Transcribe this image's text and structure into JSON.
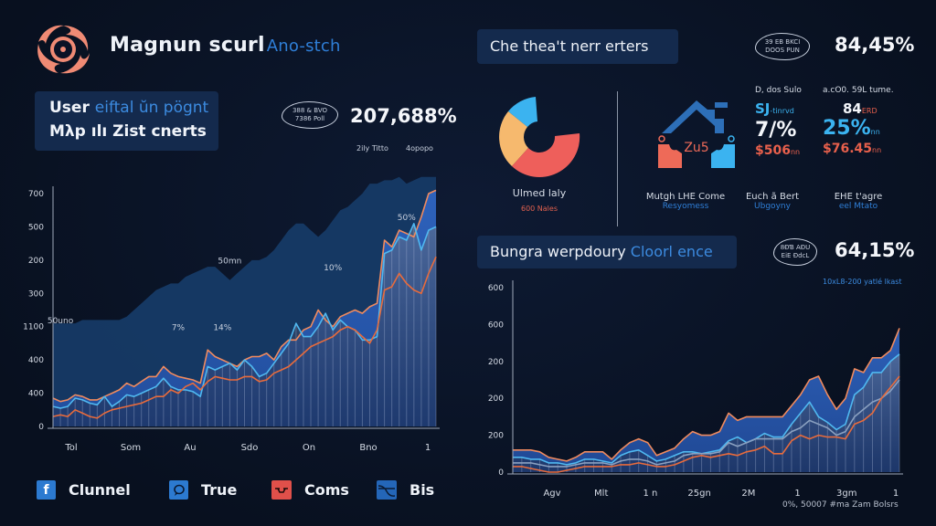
{
  "header": {
    "app_title": "Magnun scurl",
    "app_subtitle": "Ano-stch"
  },
  "left_panel": {
    "title_line1_main": "User",
    "title_line1_accent": "eiftal ŭn pögnt",
    "title_line2": "Mλp ılı Zist cnerts",
    "badge_text": [
      "388 & BVO",
      "7386 Poll"
    ],
    "kpi_value": "207,688%",
    "legend_top": [
      "2ily Titto",
      "4opopo"
    ]
  },
  "right_top": {
    "title": "Che thea't nerr erters",
    "badge_text": [
      "39 EB BKCI",
      "DOOS PUN"
    ],
    "kpi_value": "84,45%",
    "donut": {
      "label": "Ulmed laly",
      "sublabel": "600 Nales",
      "colors": {
        "blue": "#3bb3f0",
        "peach": "#f6b96e",
        "red": "#ee5f5b"
      }
    },
    "house_icon_text": "Zu5",
    "stats": [
      {
        "head": "D, dos Sulo",
        "a_value": "SJ",
        "a_unit": "-tinrvd",
        "b_value": "7/%",
        "c_value": "$506",
        "c_unit": "nn"
      },
      {
        "head": "a.cO0. 59L tume.",
        "a_value": "84",
        "a_unit": "ERD",
        "b_value": "25%",
        "b_unit": "nn",
        "c_value": "$76.45",
        "c_unit": "nn"
      }
    ],
    "captions": [
      {
        "main": "Mutgh LHE Come",
        "sub": "Resyomess"
      },
      {
        "main": "Euch ã Bert",
        "sub": "Ubgoyny"
      },
      {
        "main": "EHE t'agre",
        "sub": "eel Mtato"
      }
    ]
  },
  "right_bottom": {
    "title_main": "Bungra werpdoury",
    "title_accent": "Cloorl ence",
    "badge_text": [
      "8ĐƁ AƉU",
      "EiE ĐdcL"
    ],
    "kpi_value": "64,15%",
    "kpi_sub": "10xL8-200 yatlé lkast",
    "footer_note": "0%, 50007 #ma Zam Bolsrs"
  },
  "legend": [
    {
      "icon": "facebook-icon",
      "label": "Clunnel",
      "color": "#2c7ad0"
    },
    {
      "icon": "chat-bubble-icon",
      "label": "True",
      "color": "#2c7ad0"
    },
    {
      "icon": "drone-icon",
      "label": "Coms",
      "color": "#e0504a"
    },
    {
      "icon": "wave-chart-icon",
      "label": "Bis",
      "color": "#2466b8"
    }
  ],
  "chart_data": [
    {
      "type": "area",
      "title": "",
      "xlabel": "",
      "ylabel": "",
      "y_tick_labels": [
        "0",
        "400",
        "400",
        "1100",
        "300",
        "200",
        "500",
        "700"
      ],
      "x_tick_labels": [
        "Tol",
        "Som",
        "Au",
        "Sdo",
        "On",
        "Bno",
        "1"
      ],
      "ylim": [
        0,
        7
      ],
      "annotations": [
        {
          "text": "50uno",
          "x": 1,
          "y": 3.1
        },
        {
          "text": "7%",
          "x": 17,
          "y": 2.9
        },
        {
          "text": "50mn",
          "x": 24,
          "y": 4.9
        },
        {
          "text": "14%",
          "x": 23,
          "y": 2.9
        },
        {
          "text": "10%",
          "x": 38,
          "y": 4.7
        },
        {
          "text": "50%",
          "x": 48,
          "y": 6.2
        }
      ],
      "series": [
        {
          "name": "Background area",
          "color": "#163a66",
          "values": [
            3.1,
            3.1,
            3.1,
            3.1,
            3.2,
            3.2,
            3.2,
            3.2,
            3.2,
            3.2,
            3.3,
            3.5,
            3.7,
            3.9,
            4.1,
            4.2,
            4.3,
            4.3,
            4.5,
            4.6,
            4.7,
            4.8,
            4.8,
            4.6,
            4.4,
            4.6,
            4.8,
            5.0,
            5.0,
            5.1,
            5.3,
            5.6,
            5.9,
            6.1,
            6.1,
            5.9,
            5.7,
            5.9,
            6.2,
            6.5,
            6.6,
            6.8,
            7.0,
            7.3,
            7.3,
            7.4,
            7.4,
            7.5,
            7.3,
            7.4,
            7.5,
            7.5,
            7.5
          ]
        },
        {
          "name": "Orange upper",
          "color": "#f08a5e",
          "values": [
            0.85,
            0.75,
            0.8,
            0.95,
            0.9,
            0.8,
            0.8,
            0.9,
            1.0,
            1.1,
            1.3,
            1.2,
            1.35,
            1.5,
            1.5,
            1.8,
            1.6,
            1.5,
            1.45,
            1.4,
            1.3,
            2.3,
            2.1,
            2.0,
            1.9,
            1.8,
            2.0,
            2.1,
            2.1,
            2.2,
            2.0,
            2.4,
            2.6,
            2.6,
            2.9,
            3.0,
            3.5,
            3.2,
            3.0,
            3.3,
            3.4,
            3.5,
            3.4,
            3.6,
            3.7,
            5.6,
            5.4,
            5.9,
            5.8,
            5.7,
            6.3,
            7.0,
            7.1
          ]
        },
        {
          "name": "Light blue",
          "color": "#4fb8f0",
          "values": [
            0.6,
            0.55,
            0.6,
            0.85,
            0.8,
            0.7,
            0.65,
            0.9,
            0.6,
            0.75,
            0.95,
            0.9,
            1.0,
            1.1,
            1.2,
            1.45,
            1.2,
            1.1,
            1.1,
            1.05,
            0.9,
            1.8,
            1.7,
            1.8,
            1.9,
            1.7,
            2.0,
            1.8,
            1.5,
            1.6,
            1.9,
            2.2,
            2.5,
            3.1,
            2.7,
            2.7,
            3.0,
            3.4,
            2.9,
            3.2,
            3.0,
            2.9,
            2.6,
            2.6,
            2.7,
            5.2,
            5.3,
            5.7,
            5.6,
            6.1,
            5.3,
            5.9,
            6.0
          ]
        },
        {
          "name": "Orange lower",
          "color": "#e86b3c",
          "values": [
            0.3,
            0.35,
            0.3,
            0.5,
            0.4,
            0.3,
            0.25,
            0.4,
            0.5,
            0.55,
            0.6,
            0.65,
            0.7,
            0.8,
            0.9,
            0.9,
            1.1,
            1.0,
            1.2,
            1.3,
            1.1,
            1.35,
            1.5,
            1.45,
            1.4,
            1.4,
            1.5,
            1.5,
            1.35,
            1.4,
            1.6,
            1.7,
            1.8,
            2.0,
            2.2,
            2.4,
            2.5,
            2.6,
            2.7,
            2.9,
            3.0,
            2.9,
            2.7,
            2.5,
            2.9,
            4.1,
            4.2,
            4.6,
            4.3,
            4.1,
            4.0,
            4.6,
            5.1
          ]
        }
      ]
    },
    {
      "type": "area",
      "title": "",
      "xlabel": "",
      "ylabel": "",
      "y_tick_labels": [
        "0",
        "200",
        "200",
        "200",
        "600",
        "600"
      ],
      "x_tick_labels": [
        "Agv",
        "Mlt",
        "1 n",
        "25gn",
        "2M",
        "1",
        "3gm",
        "1"
      ],
      "ylim": [
        0,
        5
      ],
      "series": [
        {
          "name": "Orange upper",
          "color": "#f08a5e",
          "values": [
            0.6,
            0.6,
            0.6,
            0.55,
            0.4,
            0.35,
            0.3,
            0.4,
            0.55,
            0.55,
            0.55,
            0.35,
            0.6,
            0.8,
            0.9,
            0.8,
            0.45,
            0.55,
            0.65,
            0.9,
            1.1,
            1.0,
            1.0,
            1.1,
            1.6,
            1.4,
            1.5,
            1.5,
            1.5,
            1.5,
            1.5,
            1.8,
            2.1,
            2.5,
            2.6,
            2.1,
            1.7,
            2.0,
            2.8,
            2.7,
            3.1,
            3.1,
            3.3,
            3.9
          ]
        },
        {
          "name": "Light blue",
          "color": "#4fb8f0",
          "values": [
            0.4,
            0.4,
            0.35,
            0.35,
            0.25,
            0.25,
            0.2,
            0.25,
            0.35,
            0.35,
            0.3,
            0.25,
            0.45,
            0.55,
            0.6,
            0.45,
            0.3,
            0.35,
            0.45,
            0.55,
            0.55,
            0.5,
            0.55,
            0.6,
            0.85,
            0.95,
            0.8,
            0.9,
            1.05,
            0.95,
            0.95,
            1.3,
            1.6,
            1.9,
            1.5,
            1.35,
            1.15,
            1.3,
            2.1,
            2.3,
            2.7,
            2.7,
            3.0,
            3.2
          ]
        },
        {
          "name": "Gray mid",
          "color": "#8aa0c0",
          "values": [
            0.25,
            0.25,
            0.25,
            0.2,
            0.15,
            0.15,
            0.15,
            0.2,
            0.25,
            0.25,
            0.25,
            0.2,
            0.3,
            0.35,
            0.35,
            0.3,
            0.2,
            0.25,
            0.3,
            0.45,
            0.5,
            0.5,
            0.5,
            0.55,
            0.8,
            0.7,
            0.8,
            0.9,
            0.9,
            0.9,
            0.9,
            1.1,
            1.2,
            1.4,
            1.3,
            1.2,
            1.0,
            1.1,
            1.5,
            1.7,
            1.9,
            2.0,
            2.2,
            2.5
          ]
        },
        {
          "name": "Orange lower",
          "color": "#e86b3c",
          "values": [
            0.15,
            0.15,
            0.1,
            0.05,
            0.0,
            0.0,
            0.05,
            0.1,
            0.15,
            0.15,
            0.15,
            0.15,
            0.2,
            0.2,
            0.25,
            0.2,
            0.15,
            0.15,
            0.2,
            0.3,
            0.4,
            0.45,
            0.4,
            0.45,
            0.5,
            0.45,
            0.55,
            0.6,
            0.7,
            0.5,
            0.5,
            0.85,
            1.0,
            0.9,
            1.0,
            0.95,
            0.95,
            0.9,
            1.3,
            1.4,
            1.6,
            2.0,
            2.3,
            2.6
          ]
        }
      ]
    }
  ]
}
